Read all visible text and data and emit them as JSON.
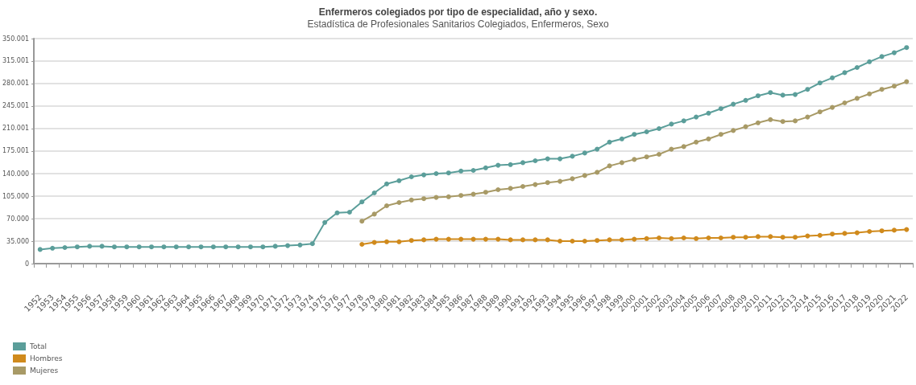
{
  "chart_data": {
    "type": "line",
    "title": "Enfermeros colegiados por tipo de especialidad, año y sexo.",
    "subtitle": "Estadística de Profesionales Sanitarios Colegiados, Enfermeros, Sexo",
    "categories": [
      "1952",
      "1953",
      "1954",
      "1955",
      "1956",
      "1957",
      "1958",
      "1959",
      "1960",
      "1961",
      "1962",
      "1963",
      "1964",
      "1965",
      "1966",
      "1967",
      "1968",
      "1969",
      "1970",
      "1971",
      "1972",
      "1973",
      "1974",
      "1975",
      "1976",
      "1977",
      "1978",
      "1979",
      "1980",
      "1981",
      "1982",
      "1983",
      "1984",
      "1985",
      "1986",
      "1987",
      "1988",
      "1989",
      "1990",
      "1991",
      "1992",
      "1993",
      "1994",
      "1995",
      "1996",
      "1997",
      "1998",
      "1999",
      "2000",
      "2001",
      "2002",
      "2003",
      "2004",
      "2005",
      "2006",
      "2007",
      "2008",
      "2009",
      "2010",
      "2011",
      "2012",
      "2013",
      "2014",
      "2015",
      "2016",
      "2017",
      "2018",
      "2019",
      "2020",
      "2021",
      "2022"
    ],
    "series": [
      {
        "name": "Total",
        "color": "#5b9e9a",
        "values": [
          22000,
          24000,
          25000,
          26000,
          27000,
          27000,
          26000,
          26000,
          26000,
          26000,
          26000,
          26000,
          26000,
          26000,
          26000,
          26000,
          26000,
          26000,
          26000,
          27000,
          28000,
          29000,
          31000,
          64000,
          79000,
          80000,
          96000,
          110000,
          124000,
          129000,
          135000,
          138000,
          140000,
          141000,
          144000,
          145000,
          149000,
          153000,
          154000,
          157000,
          160000,
          163000,
          163000,
          167000,
          172000,
          178000,
          189000,
          194000,
          201000,
          205000,
          210000,
          217000,
          222000,
          228000,
          234000,
          241000,
          248000,
          254000,
          261000,
          266000,
          262000,
          263000,
          271000,
          281000,
          289000,
          297000,
          305000,
          314000,
          322000,
          328000,
          336000
        ]
      },
      {
        "name": "Hombres",
        "color": "#d08a1c",
        "values": [
          null,
          null,
          null,
          null,
          null,
          null,
          null,
          null,
          null,
          null,
          null,
          null,
          null,
          null,
          null,
          null,
          null,
          null,
          null,
          null,
          null,
          null,
          null,
          null,
          null,
          null,
          30000,
          33000,
          34000,
          34000,
          36000,
          37000,
          38000,
          38000,
          38000,
          38000,
          38000,
          38000,
          37000,
          37000,
          37000,
          37000,
          35000,
          35000,
          35000,
          36000,
          37000,
          37000,
          38000,
          39000,
          40000,
          39000,
          40000,
          39000,
          40000,
          40000,
          41000,
          41000,
          42000,
          42000,
          41000,
          41000,
          43000,
          44000,
          46000,
          47000,
          48000,
          50000,
          51000,
          52000,
          53000
        ]
      },
      {
        "name": "Mujeres",
        "color": "#a89a66",
        "values": [
          null,
          null,
          null,
          null,
          null,
          null,
          null,
          null,
          null,
          null,
          null,
          null,
          null,
          null,
          null,
          null,
          null,
          null,
          null,
          null,
          null,
          null,
          null,
          null,
          null,
          null,
          66000,
          77000,
          90000,
          95000,
          99000,
          101000,
          103000,
          104000,
          106000,
          108000,
          111000,
          115000,
          117000,
          120000,
          123000,
          126000,
          128000,
          132000,
          137000,
          142000,
          152000,
          157000,
          162000,
          166000,
          170000,
          178000,
          182000,
          189000,
          194000,
          201000,
          207000,
          213000,
          219000,
          224000,
          221000,
          222000,
          228000,
          236000,
          243000,
          250000,
          257000,
          264000,
          271000,
          276000,
          283000
        ]
      }
    ],
    "ylim": [
      0,
      350001
    ],
    "yticks": [
      0,
      {
        "value": 35000,
        "label": "35.000"
      },
      {
        "value": 70000,
        "label": "70.000"
      },
      {
        "value": 105000,
        "label": "105.000"
      },
      {
        "value": 140000,
        "label": "140.000"
      },
      {
        "value": 175001,
        "label": "175.001"
      },
      {
        "value": 210001,
        "label": "210.001"
      },
      {
        "value": 245001,
        "label": "245.001"
      },
      {
        "value": 280001,
        "label": "280.001"
      },
      {
        "value": 315001,
        "label": "315.001"
      },
      {
        "value": 350001,
        "label": "350.001"
      }
    ],
    "grid": "y",
    "legend": "bottom left",
    "marker": "circle",
    "line_style": "solid"
  }
}
